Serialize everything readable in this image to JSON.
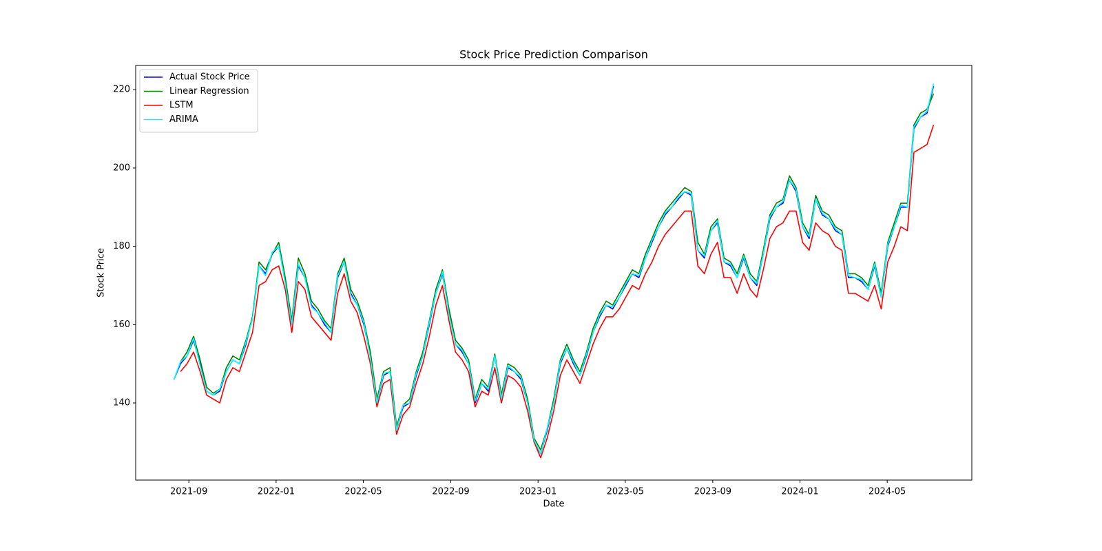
{
  "chart_data": {
    "type": "line",
    "title": "Stock Price Prediction Comparison",
    "x_label": "Date",
    "y_label": "Stock Price",
    "legend": "upper left",
    "grid": false,
    "xlim": [
      2021.464,
      2024.656
    ],
    "ylim": [
      120.3,
      226.2
    ],
    "xticks": [
      {
        "value": 2021.667,
        "label": "2021-09"
      },
      {
        "value": 2022.0,
        "label": "2022-01"
      },
      {
        "value": 2022.333,
        "label": "2022-05"
      },
      {
        "value": 2022.667,
        "label": "2022-09"
      },
      {
        "value": 2023.0,
        "label": "2023-01"
      },
      {
        "value": 2023.333,
        "label": "2023-05"
      },
      {
        "value": 2023.667,
        "label": "2023-09"
      },
      {
        "value": 2024.0,
        "label": "2024-01"
      },
      {
        "value": 2024.333,
        "label": "2024-05"
      }
    ],
    "yticks": [
      140,
      160,
      180,
      200,
      220
    ],
    "x": [
      2021.61,
      2021.635,
      2021.66,
      2021.685,
      2021.71,
      2021.735,
      2021.76,
      2021.785,
      2021.81,
      2021.835,
      2021.86,
      2021.885,
      2021.91,
      2021.935,
      2021.96,
      2021.985,
      2022.01,
      2022.035,
      2022.06,
      2022.085,
      2022.11,
      2022.135,
      2022.16,
      2022.185,
      2022.21,
      2022.235,
      2022.26,
      2022.285,
      2022.31,
      2022.335,
      2022.36,
      2022.385,
      2022.41,
      2022.435,
      2022.46,
      2022.485,
      2022.51,
      2022.535,
      2022.56,
      2022.585,
      2022.61,
      2022.635,
      2022.66,
      2022.685,
      2022.71,
      2022.735,
      2022.76,
      2022.785,
      2022.81,
      2022.835,
      2022.86,
      2022.885,
      2022.91,
      2022.935,
      2022.96,
      2022.985,
      2023.01,
      2023.035,
      2023.06,
      2023.085,
      2023.11,
      2023.135,
      2023.16,
      2023.185,
      2023.21,
      2023.235,
      2023.26,
      2023.285,
      2023.31,
      2023.335,
      2023.36,
      2023.385,
      2023.41,
      2023.435,
      2023.46,
      2023.485,
      2023.51,
      2023.535,
      2023.56,
      2023.585,
      2023.61,
      2023.635,
      2023.66,
      2023.685,
      2023.71,
      2023.735,
      2023.76,
      2023.785,
      2023.81,
      2023.835,
      2023.86,
      2023.885,
      2023.91,
      2023.935,
      2023.96,
      2023.985,
      2024.01,
      2024.035,
      2024.06,
      2024.085,
      2024.11,
      2024.135,
      2024.16,
      2024.185,
      2024.21,
      2024.235,
      2024.26,
      2024.285,
      2024.31,
      2024.335,
      2024.36,
      2024.385,
      2024.41,
      2024.435,
      2024.46,
      2024.485,
      2024.51
    ],
    "series": [
      {
        "name": "Actual Stock Price",
        "color": "#0000ff",
        "values": [
          146,
          150,
          152,
          156,
          150,
          143,
          142,
          143,
          148,
          151,
          150,
          155,
          162,
          175,
          173,
          178,
          180,
          171,
          160,
          175,
          172,
          165,
          163,
          160,
          158,
          172,
          176,
          168,
          165,
          160,
          152,
          140,
          147,
          148,
          133,
          139,
          140,
          147,
          152,
          160,
          168,
          173,
          163,
          155,
          153,
          150,
          140,
          145,
          143,
          152,
          141,
          149,
          148,
          146,
          140,
          130,
          127,
          133,
          140,
          150,
          154,
          150,
          147,
          152,
          158,
          162,
          165,
          164,
          167,
          170,
          173,
          172,
          177,
          181,
          185,
          188,
          190,
          192,
          194,
          193,
          179,
          177,
          184,
          186,
          176,
          175,
          172,
          177,
          172,
          170,
          178,
          187,
          190,
          191,
          197,
          194,
          185,
          182,
          192,
          188,
          187,
          184,
          183,
          172,
          172,
          171,
          169,
          175,
          167,
          180,
          185,
          190,
          190,
          210,
          213,
          214,
          221
        ]
      },
      {
        "name": "Linear Regression",
        "color": "#008000",
        "values": [
          null,
          150.5,
          153,
          157,
          151,
          144,
          142.5,
          143.5,
          149,
          152,
          151,
          156,
          162,
          176,
          174,
          178,
          181,
          172,
          161,
          177,
          173,
          166,
          164,
          161,
          159,
          173,
          177,
          169,
          166,
          161,
          153,
          141,
          148,
          149,
          134,
          139.5,
          141,
          148,
          153,
          161,
          169,
          174,
          164,
          156,
          154,
          151,
          141,
          146,
          144,
          152.5,
          142,
          150,
          149,
          147,
          141,
          131,
          128,
          133.5,
          141,
          151,
          155,
          151,
          148,
          153,
          159,
          163,
          166,
          165,
          168,
          171,
          174,
          173,
          178,
          182,
          186,
          189,
          191,
          193,
          195,
          194,
          181,
          178,
          185,
          187,
          177,
          176,
          173,
          178,
          173,
          171,
          179,
          188,
          191,
          192,
          198,
          195,
          186,
          183,
          193,
          189,
          188,
          185,
          184,
          173,
          173,
          172,
          170,
          176,
          168,
          181,
          186,
          191,
          191,
          211,
          214,
          215,
          219
        ]
      },
      {
        "name": "LSTM",
        "color": "#ff0000",
        "values": [
          null,
          148,
          150,
          153,
          148,
          142,
          141,
          140,
          146,
          149,
          148,
          153,
          158,
          170,
          171,
          174,
          175,
          169,
          158,
          171,
          169,
          162,
          160,
          158,
          156,
          168,
          173,
          166,
          163,
          157,
          150,
          139,
          145,
          146,
          132,
          137,
          139,
          145,
          150,
          157,
          165,
          170,
          161,
          153,
          151,
          148,
          139,
          143,
          142,
          149,
          140,
          147,
          146,
          144,
          138,
          130,
          126,
          131,
          138,
          147,
          151,
          148,
          145,
          150,
          155,
          159,
          162,
          162,
          164,
          167,
          170,
          169,
          173,
          176,
          180,
          183,
          185,
          187,
          189,
          189,
          175,
          173,
          178,
          181,
          172,
          172,
          168,
          173,
          169,
          167,
          174,
          182,
          185,
          186,
          189,
          189,
          181,
          179,
          186,
          184,
          183,
          180,
          179,
          168,
          168,
          167,
          166,
          170,
          164,
          176,
          180,
          185,
          184,
          204,
          205,
          206,
          211
        ]
      },
      {
        "name": "ARIMA",
        "color": "#00ffff",
        "values": [
          146,
          150.5,
          152,
          156.5,
          149.5,
          143,
          142,
          143.5,
          148,
          151,
          150,
          155.5,
          161.5,
          175,
          172.5,
          178.5,
          180,
          170.5,
          160,
          175.5,
          172,
          164.5,
          163,
          160.5,
          158,
          172.5,
          176,
          167.5,
          165,
          160.5,
          151.5,
          140,
          147.5,
          148,
          133,
          139.5,
          140,
          147.5,
          152,
          160.5,
          168,
          173.5,
          162.5,
          155,
          153.5,
          150,
          140.5,
          145,
          143.5,
          152,
          141,
          149.5,
          148,
          146.5,
          140,
          130.5,
          127,
          133.5,
          140,
          150.5,
          154,
          150.5,
          147,
          152.5,
          158,
          162.5,
          165,
          164.5,
          167,
          170.5,
          173,
          172.5,
          177,
          181.5,
          185,
          188.5,
          190,
          192.5,
          194,
          193.5,
          179,
          177.5,
          184,
          186.5,
          176,
          175.5,
          172,
          177.5,
          172,
          170.5,
          178,
          187.5,
          190,
          191.5,
          197,
          194.5,
          185,
          182.5,
          192,
          188.5,
          187,
          184.5,
          183,
          172.5,
          172,
          171.5,
          169,
          175.5,
          167,
          180.5,
          185,
          190.5,
          190,
          210.5,
          213,
          214.5,
          221.5
        ]
      }
    ]
  }
}
